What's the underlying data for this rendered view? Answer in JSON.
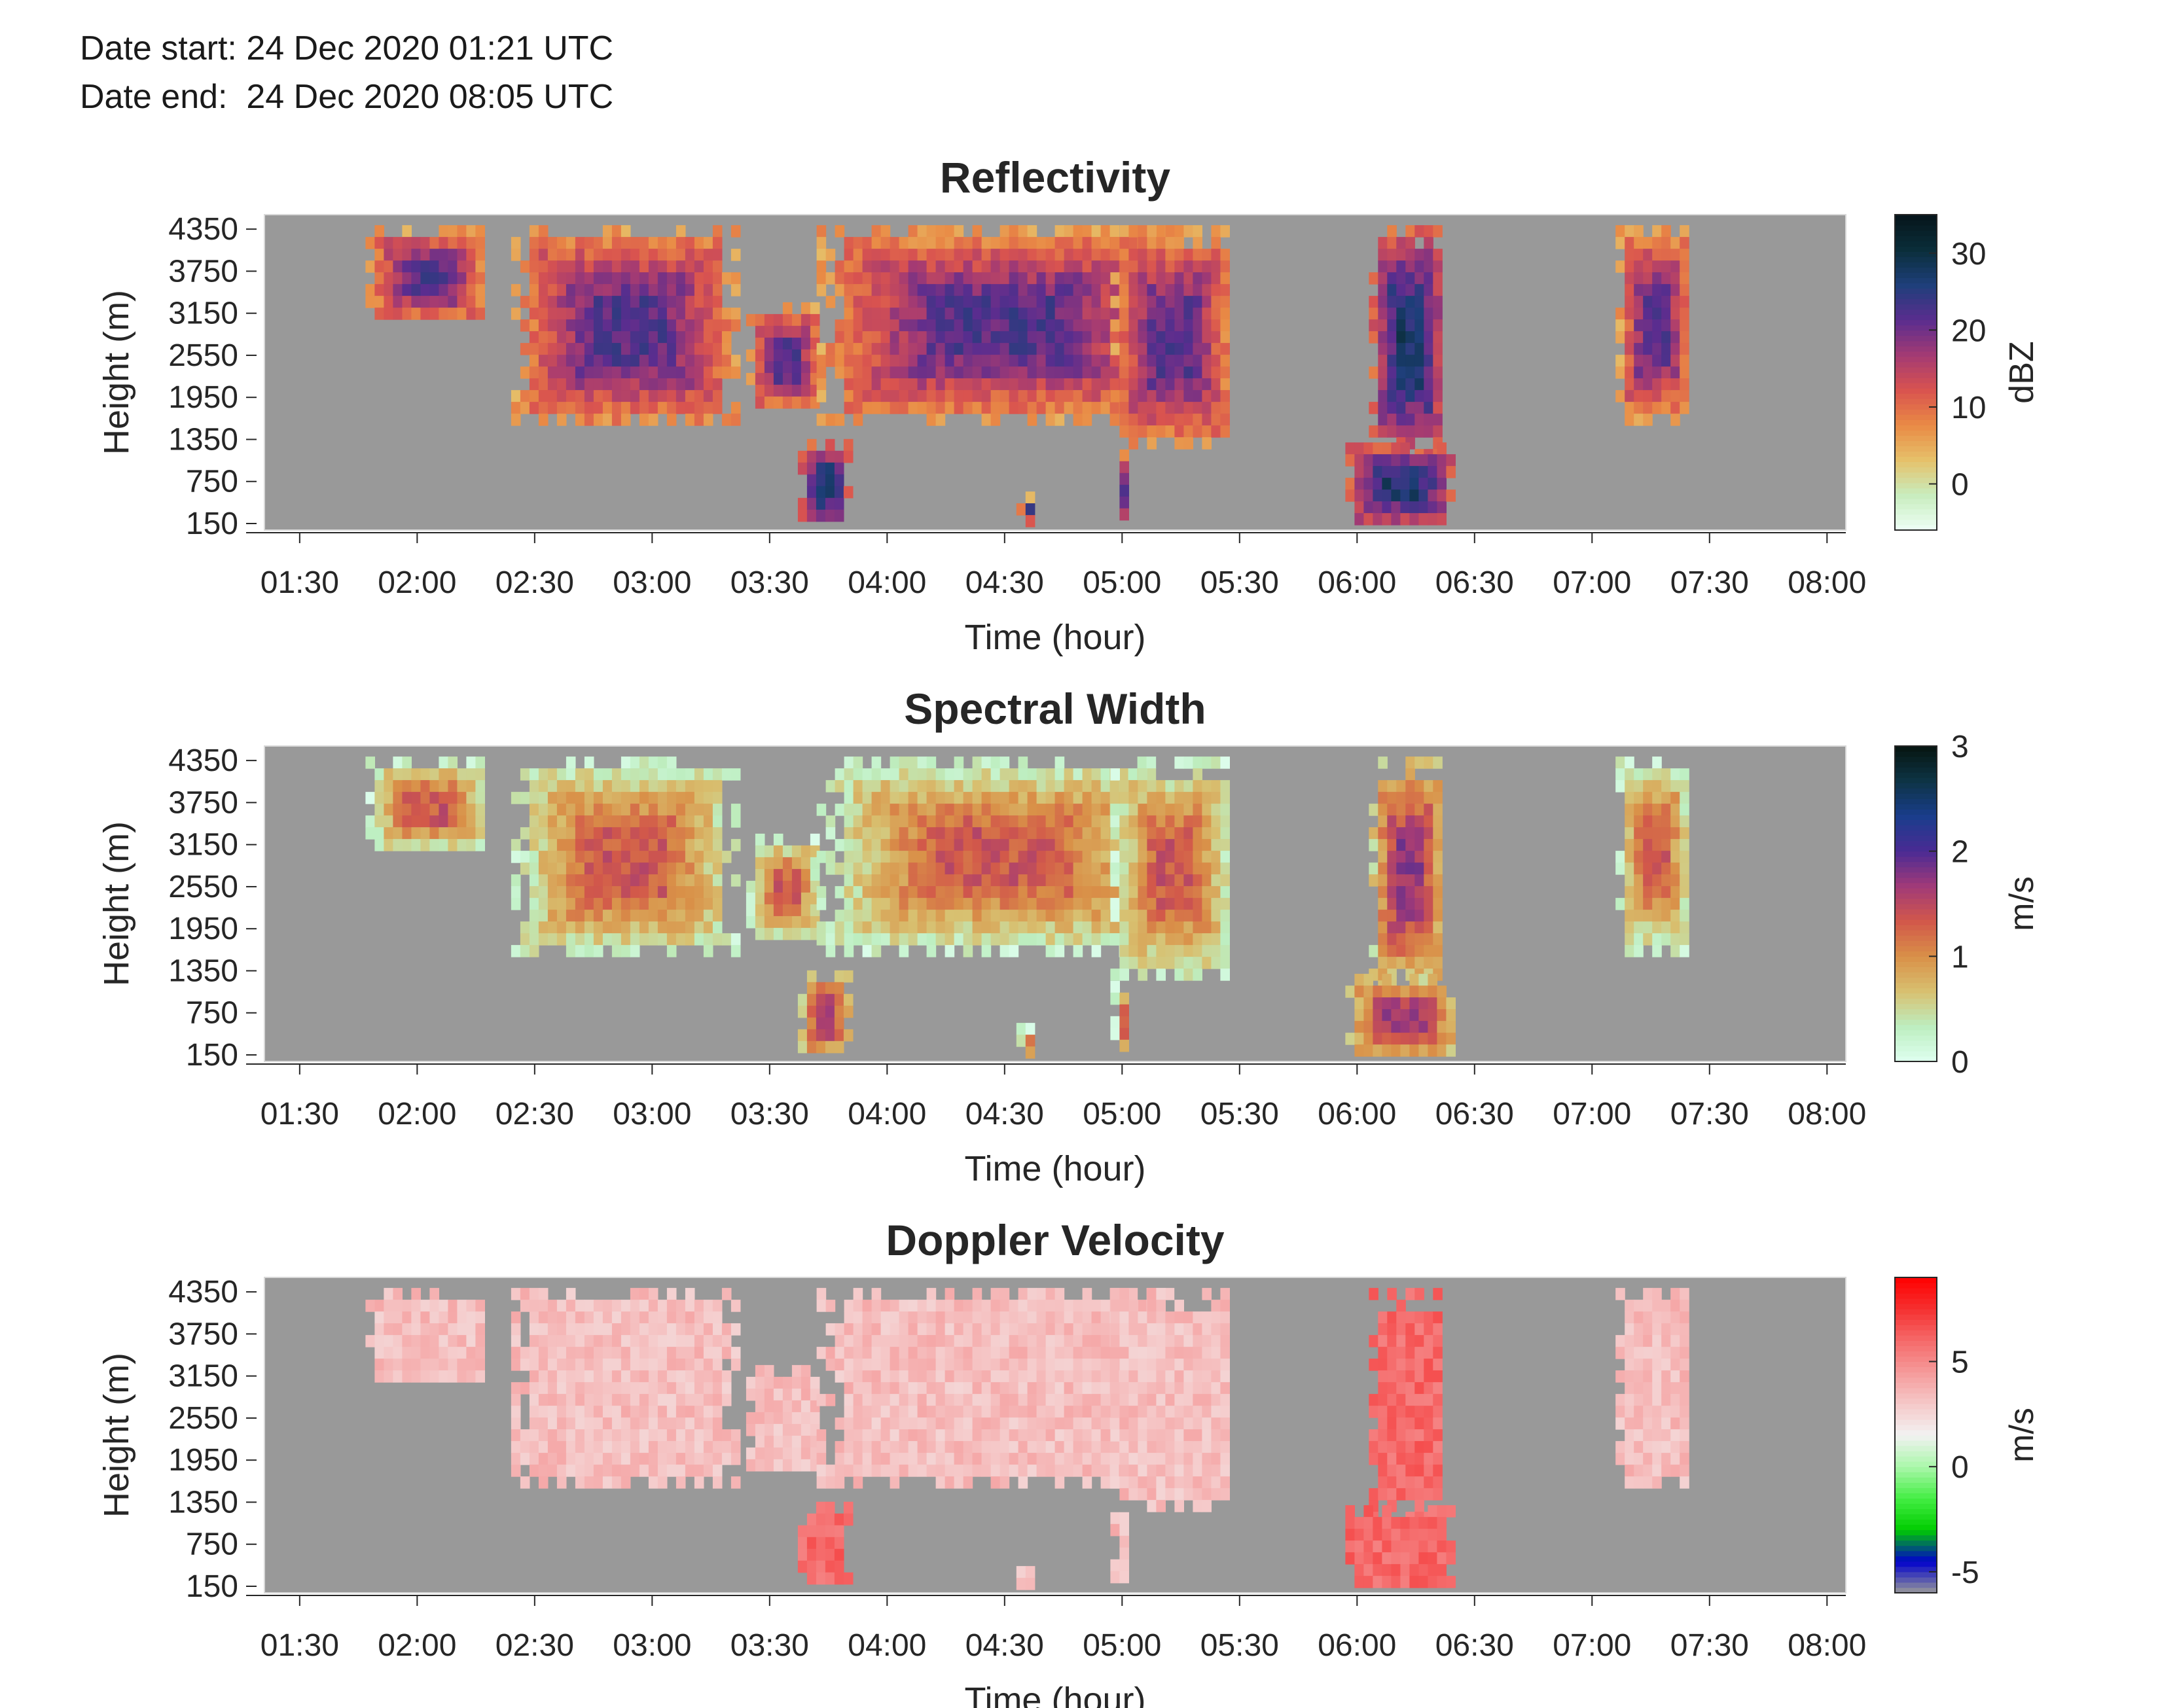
{
  "header": {
    "date_start": "Date start: 24 Dec 2020 01:21 UTC",
    "date_end": "Date end:  24 Dec 2020 08:05 UTC"
  },
  "chart_data": [
    {
      "type": "heatmap",
      "title": "Reflectivity",
      "xlabel": "Time (hour)",
      "ylabel": "Height (m)",
      "x_ticks": [
        "01:30",
        "02:00",
        "02:30",
        "03:00",
        "03:30",
        "04:00",
        "04:30",
        "05:00",
        "05:30",
        "06:00",
        "06:30",
        "07:00",
        "07:30",
        "08:00"
      ],
      "x_tick_hours": [
        1.5,
        2.0,
        2.5,
        3.0,
        3.5,
        4.0,
        4.5,
        5.0,
        5.5,
        6.0,
        6.5,
        7.0,
        7.5,
        8.0
      ],
      "xlim_hours": [
        1.35,
        8.08
      ],
      "y_ticks": [
        150,
        750,
        1350,
        1950,
        2550,
        3150,
        3750,
        4350
      ],
      "ylim": [
        150,
        4650
      ],
      "colorbar": {
        "label": "dBZ",
        "ticks": [
          0,
          10,
          20,
          30
        ],
        "range": [
          -6,
          35
        ],
        "colors": [
          "#eefff6",
          "#c8edbe",
          "#e6c16a",
          "#e98a45",
          "#d9534f",
          "#a33a73",
          "#5a2d8f",
          "#1e3f7a",
          "#0a2e3a",
          "#06141a"
        ]
      },
      "no_data_color": "#999999"
    },
    {
      "type": "heatmap",
      "title": "Spectral Width",
      "xlabel": "Time (hour)",
      "ylabel": "Height (m)",
      "x_ticks": [
        "01:30",
        "02:00",
        "02:30",
        "03:00",
        "03:30",
        "04:00",
        "04:30",
        "05:00",
        "05:30",
        "06:00",
        "06:30",
        "07:00",
        "07:30",
        "08:00"
      ],
      "x_tick_hours": [
        1.5,
        2.0,
        2.5,
        3.0,
        3.5,
        4.0,
        4.5,
        5.0,
        5.5,
        6.0,
        6.5,
        7.0,
        7.5,
        8.0
      ],
      "xlim_hours": [
        1.35,
        8.08
      ],
      "y_ticks": [
        150,
        750,
        1350,
        1950,
        2550,
        3150,
        3750,
        4350
      ],
      "ylim": [
        150,
        4650
      ],
      "colorbar": {
        "label": "m/s",
        "ticks": [
          0,
          1,
          2,
          3
        ],
        "range": [
          0,
          3
        ],
        "colors": [
          "#dffff0",
          "#bdeec0",
          "#d8c070",
          "#d99048",
          "#d2584a",
          "#a13a78",
          "#4a2b94",
          "#1a3d8c",
          "#0d3445",
          "#061510"
        ]
      },
      "no_data_color": "#999999"
    },
    {
      "type": "heatmap",
      "title": "Doppler Velocity",
      "xlabel": "Time (hour)",
      "ylabel": "Height (m)",
      "x_ticks": [
        "01:30",
        "02:00",
        "02:30",
        "03:00",
        "03:30",
        "04:00",
        "04:30",
        "05:00",
        "05:30",
        "06:00",
        "06:30",
        "07:00",
        "07:30",
        "08:00"
      ],
      "x_tick_hours": [
        1.5,
        2.0,
        2.5,
        3.0,
        3.5,
        4.0,
        4.5,
        5.0,
        5.5,
        6.0,
        6.5,
        7.0,
        7.5,
        8.0
      ],
      "xlim_hours": [
        1.35,
        8.08
      ],
      "y_ticks": [
        150,
        750,
        1350,
        1950,
        2550,
        3150,
        3750,
        4350
      ],
      "ylim": [
        150,
        4650
      ],
      "colorbar": {
        "label": "m/s",
        "ticks": [
          -5,
          0,
          5
        ],
        "range": [
          -6,
          9
        ],
        "colors": [
          "#999999",
          "#0000cc",
          "#00cc00",
          "#44ee44",
          "#aaf7aa",
          "#f2f2f2",
          "#f5c8c8",
          "#f59a9a",
          "#f56a6a",
          "#f53030",
          "#ff0000"
        ]
      },
      "no_data_color": "#999999"
    }
  ]
}
